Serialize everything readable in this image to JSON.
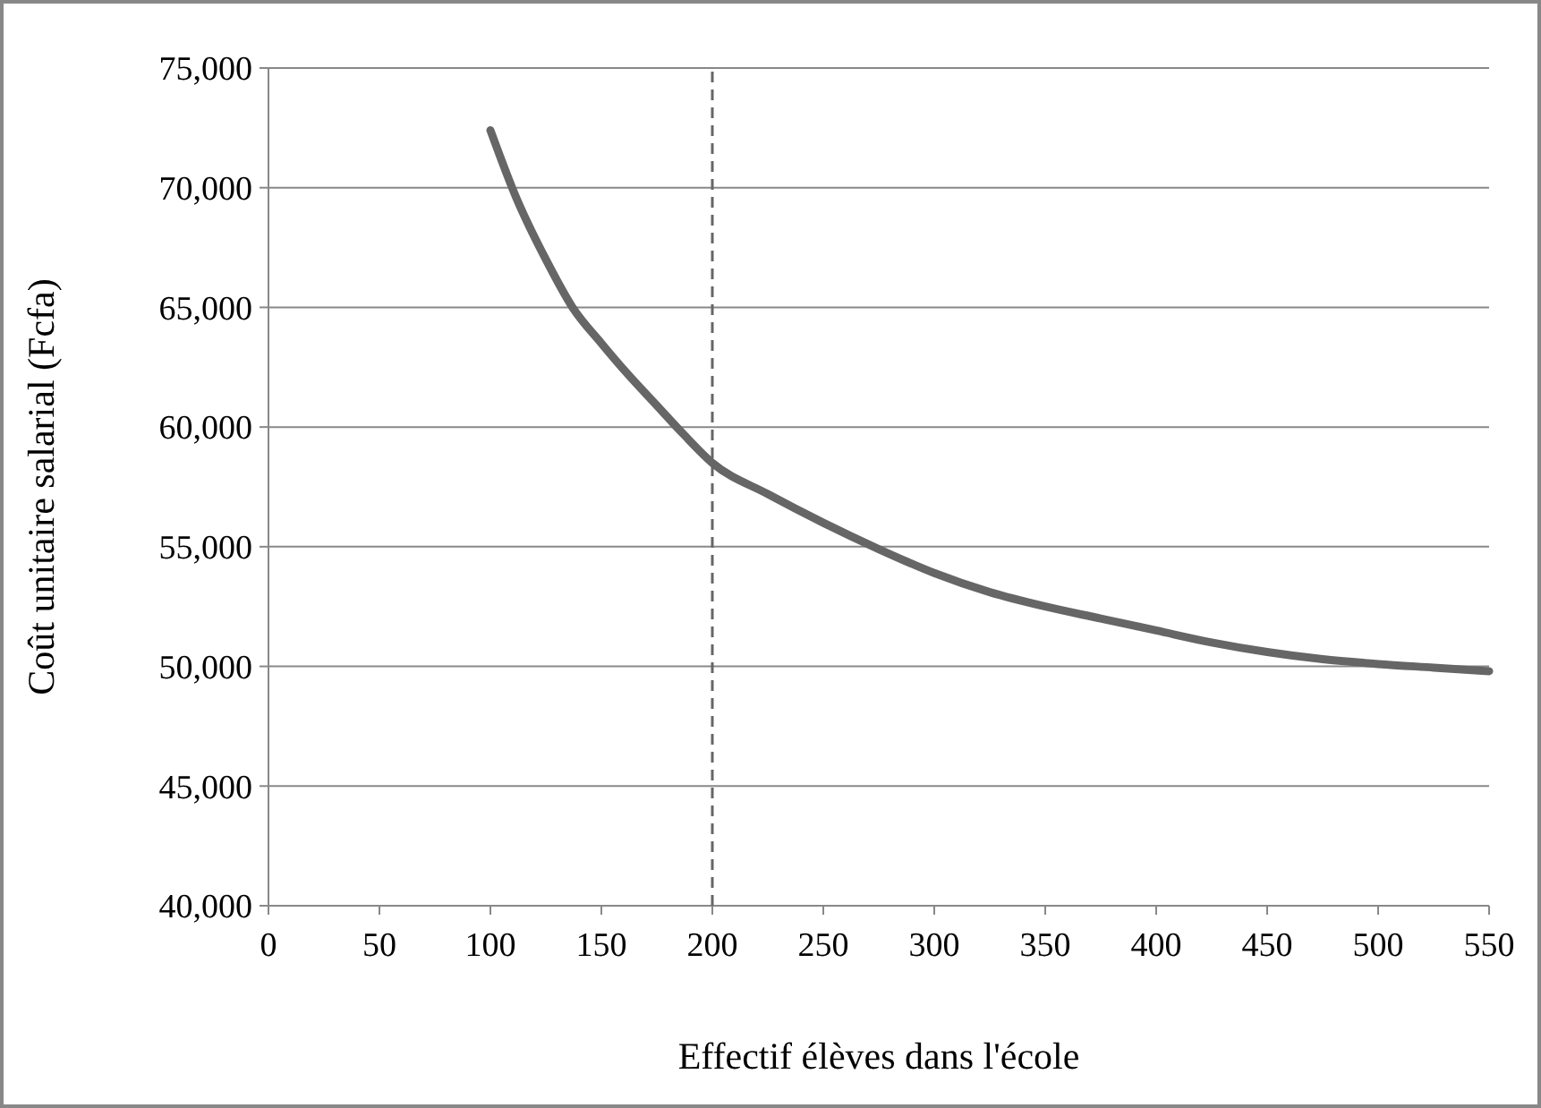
{
  "chart_data": {
    "type": "line",
    "xlabel": "Effectif élèves dans l'école",
    "ylabel": "Coût unitaire salarial (Fcfa)",
    "x": [
      100,
      112,
      125,
      137,
      150,
      162,
      175,
      187,
      200,
      225,
      250,
      275,
      300,
      325,
      350,
      375,
      400,
      425,
      450,
      475,
      500,
      525,
      550
    ],
    "series": [
      {
        "color": "#666666",
        "values": [
          72400,
          69500,
          67000,
          65000,
          63500,
          62200,
          60900,
          59700,
          58500,
          57200,
          56000,
          54900,
          53900,
          53100,
          52500,
          52000,
          51500,
          51000,
          50600,
          50300,
          50100,
          49950,
          49800
        ]
      }
    ],
    "xlim": [
      0,
      550
    ],
    "xticks": [
      0,
      50,
      100,
      150,
      200,
      250,
      300,
      350,
      400,
      450,
      500,
      550
    ],
    "ylim": [
      40000,
      75000
    ],
    "yticks": [
      {
        "value": 40000,
        "label": "40,000"
      },
      {
        "value": 45000,
        "label": "45,000"
      },
      {
        "value": 50000,
        "label": "50,000"
      },
      {
        "value": 55000,
        "label": "55,000"
      },
      {
        "value": 60000,
        "label": "60,000"
      },
      {
        "value": 65000,
        "label": "65,000"
      },
      {
        "value": 70000,
        "label": "70,000"
      },
      {
        "value": 75000,
        "label": "75,000"
      }
    ],
    "grid": "y",
    "marker": "none",
    "line_style": "solid",
    "ref_lines": [
      {
        "axis": "x",
        "value": 200,
        "color": "#666666",
        "line_style": "dashed"
      }
    ]
  }
}
